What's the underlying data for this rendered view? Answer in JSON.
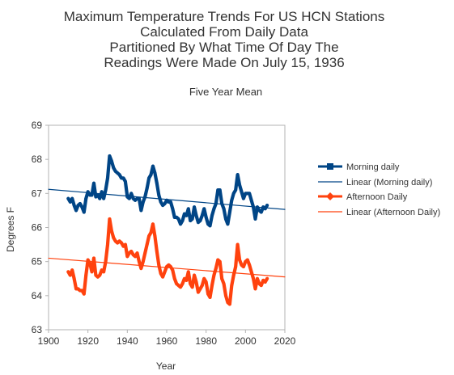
{
  "chart_data": {
    "type": "line",
    "title": "Maximum Temperature Trends For US HCN Stations\nCalculated From Daily Data\nPartitioned By What Time Of Day The\nReadings Were Made On July 15, 1936",
    "title_lines": [
      "Maximum Temperature Trends For US HCN Stations",
      "Calculated From Daily Data",
      "Partitioned By What Time Of Day The",
      "Readings Were Made On July 15, 1936"
    ],
    "subtitle": "Five Year Mean",
    "xlabel": "Year",
    "ylabel": "Degrees F",
    "xlim": [
      1900,
      2020
    ],
    "ylim": [
      63,
      69
    ],
    "xticks": [
      1900,
      1920,
      1940,
      1960,
      1980,
      2000,
      2020
    ],
    "yticks": [
      63,
      64,
      65,
      66,
      67,
      68,
      69
    ],
    "grid": false,
    "legend_position": "right",
    "colors": {
      "morning": "#004586",
      "afternoon": "#ff420e"
    },
    "series": [
      {
        "name": "Morning daily",
        "color": "#004586",
        "marker": "square",
        "x": [
          1910,
          1911,
          1912,
          1913,
          1914,
          1915,
          1916,
          1917,
          1918,
          1919,
          1920,
          1921,
          1922,
          1923,
          1924,
          1925,
          1926,
          1927,
          1928,
          1929,
          1930,
          1931,
          1932,
          1933,
          1934,
          1935,
          1936,
          1937,
          1938,
          1939,
          1940,
          1941,
          1942,
          1943,
          1944,
          1945,
          1946,
          1947,
          1948,
          1949,
          1950,
          1951,
          1952,
          1953,
          1954,
          1955,
          1956,
          1957,
          1958,
          1959,
          1960,
          1961,
          1962,
          1963,
          1964,
          1965,
          1966,
          1967,
          1968,
          1969,
          1970,
          1971,
          1972,
          1973,
          1974,
          1975,
          1976,
          1977,
          1978,
          1979,
          1980,
          1981,
          1982,
          1983,
          1984,
          1985,
          1986,
          1987,
          1988,
          1989,
          1990,
          1991,
          1992,
          1993,
          1994,
          1995,
          1996,
          1997,
          1998,
          1999,
          2000,
          2001,
          2002,
          2003,
          2004,
          2005,
          2006,
          2007,
          2008,
          2009,
          2010,
          2011
        ],
        "values": [
          66.85,
          66.75,
          66.85,
          66.65,
          66.5,
          66.65,
          66.7,
          66.6,
          66.45,
          66.85,
          67.05,
          66.95,
          66.95,
          67.3,
          66.9,
          66.95,
          66.85,
          67.05,
          66.85,
          67.1,
          67.45,
          68.1,
          67.95,
          67.75,
          67.65,
          67.6,
          67.55,
          67.45,
          67.45,
          67.35,
          66.9,
          66.85,
          67.0,
          66.85,
          66.8,
          66.85,
          66.85,
          66.5,
          66.75,
          66.9,
          67.15,
          67.45,
          67.55,
          67.8,
          67.6,
          67.3,
          66.95,
          66.75,
          66.65,
          66.7,
          66.8,
          66.75,
          66.75,
          66.55,
          66.3,
          66.3,
          66.25,
          66.1,
          66.2,
          66.4,
          66.35,
          66.55,
          66.2,
          66.25,
          66.6,
          66.35,
          66.15,
          66.2,
          66.35,
          66.55,
          66.3,
          66.1,
          66.05,
          66.35,
          66.55,
          66.7,
          67.1,
          67.1,
          66.7,
          66.55,
          66.25,
          66.1,
          66.45,
          66.8,
          67.0,
          67.1,
          67.55,
          67.25,
          67.05,
          66.85,
          67.0,
          67.0,
          67.0,
          66.8,
          66.6,
          66.25,
          66.6,
          66.5,
          66.45,
          66.6,
          66.55,
          66.65
        ]
      },
      {
        "name": "Linear (Morning daily)",
        "color": "#004586",
        "x": [
          1900,
          2020
        ],
        "values": [
          67.12,
          66.53
        ]
      },
      {
        "name": "Afternoon Daily",
        "color": "#ff420e",
        "marker": "diamond",
        "x": [
          1910,
          1911,
          1912,
          1913,
          1914,
          1915,
          1916,
          1917,
          1918,
          1919,
          1920,
          1921,
          1922,
          1923,
          1924,
          1925,
          1926,
          1927,
          1928,
          1929,
          1930,
          1931,
          1932,
          1933,
          1934,
          1935,
          1936,
          1937,
          1938,
          1939,
          1940,
          1941,
          1942,
          1943,
          1944,
          1945,
          1946,
          1947,
          1948,
          1949,
          1950,
          1951,
          1952,
          1953,
          1954,
          1955,
          1956,
          1957,
          1958,
          1959,
          1960,
          1961,
          1962,
          1963,
          1964,
          1965,
          1966,
          1967,
          1968,
          1969,
          1970,
          1971,
          1972,
          1973,
          1974,
          1975,
          1976,
          1977,
          1978,
          1979,
          1980,
          1981,
          1982,
          1983,
          1984,
          1985,
          1986,
          1987,
          1988,
          1989,
          1990,
          1991,
          1992,
          1993,
          1994,
          1995,
          1996,
          1997,
          1998,
          1999,
          2000,
          2001,
          2002,
          2003,
          2004,
          2005,
          2006,
          2007,
          2008,
          2009,
          2010,
          2011
        ],
        "values": [
          64.7,
          64.6,
          64.75,
          64.5,
          64.2,
          64.2,
          64.15,
          64.15,
          64.05,
          64.6,
          65.05,
          64.95,
          64.7,
          65.1,
          64.6,
          64.55,
          64.6,
          64.75,
          64.7,
          65.0,
          65.5,
          66.25,
          65.9,
          65.7,
          65.6,
          65.55,
          65.6,
          65.55,
          65.45,
          65.5,
          65.15,
          65.25,
          65.3,
          65.2,
          65.15,
          65.25,
          65.0,
          64.8,
          65.0,
          65.25,
          65.5,
          65.75,
          65.85,
          66.1,
          65.75,
          65.3,
          64.9,
          64.65,
          64.55,
          64.7,
          64.85,
          64.9,
          64.85,
          64.75,
          64.5,
          64.35,
          64.3,
          64.25,
          64.35,
          64.5,
          64.45,
          64.7,
          64.35,
          64.25,
          64.6,
          64.4,
          64.1,
          64.2,
          64.3,
          64.5,
          64.4,
          64.05,
          63.95,
          64.3,
          64.6,
          64.8,
          65.05,
          65.0,
          64.5,
          64.35,
          64.0,
          63.8,
          63.75,
          64.3,
          64.6,
          64.85,
          65.5,
          65.05,
          64.9,
          64.85,
          65.0,
          65.05,
          64.9,
          64.7,
          64.5,
          64.2,
          64.5,
          64.35,
          64.3,
          64.45,
          64.4,
          64.5
        ]
      },
      {
        "name": "Linear (Afternoon Daily)",
        "color": "#ff420e",
        "x": [
          1900,
          2020
        ],
        "values": [
          65.1,
          64.55
        ]
      }
    ]
  }
}
